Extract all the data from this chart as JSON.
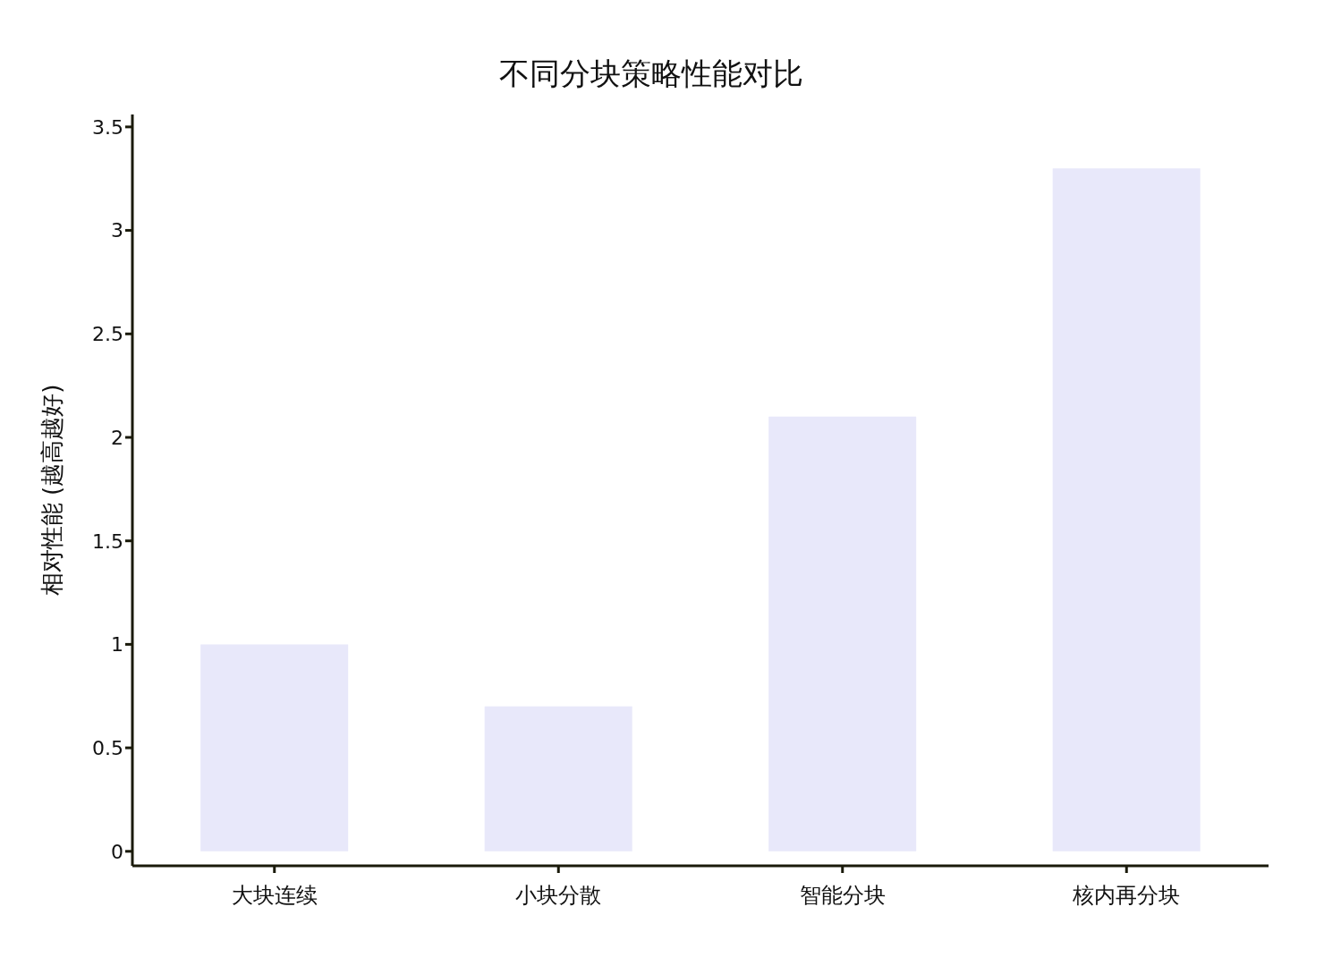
{
  "chart_data": {
    "type": "bar",
    "title": "不同分块策略性能对比",
    "ylabel": "相对性能 (越高越好)",
    "categories": [
      "大块连续",
      "小块分散",
      "智能分块",
      "核内再分块"
    ],
    "values": [
      1.0,
      0.7,
      2.1,
      3.3
    ],
    "color": "#e8e8fa",
    "ylim": [
      -0.07,
      3.56
    ],
    "yticks": [
      0,
      0.5,
      1,
      1.5,
      2,
      2.5,
      3,
      3.5
    ],
    "grid": false
  }
}
